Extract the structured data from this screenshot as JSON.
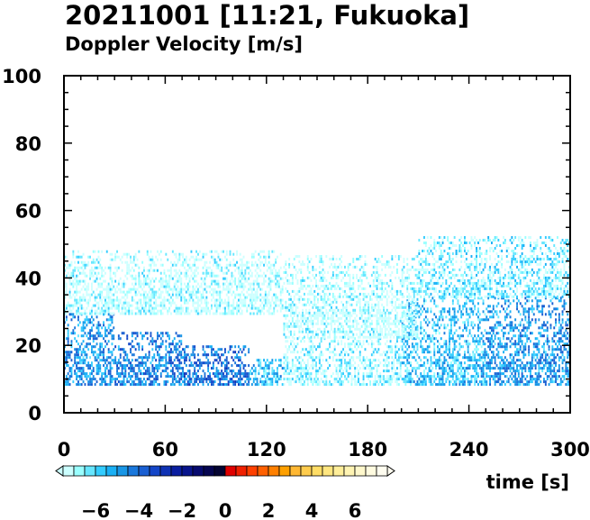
{
  "chart_data": {
    "type": "heatmap",
    "title": "20211001 [11:21, Fukuoka]",
    "subtitle": "Doppler Velocity [m/s]",
    "xlabel": "time [s]",
    "ylabel": "",
    "xlim": [
      0,
      300
    ],
    "ylim": [
      0,
      100
    ],
    "x_ticks": [
      0,
      60,
      120,
      180,
      240,
      300
    ],
    "y_ticks": [
      0,
      20,
      40,
      60,
      80,
      100
    ],
    "colorbar": {
      "range": [
        -7.5,
        7.5
      ],
      "tick_labels": [
        "−6",
        "−4",
        "−2",
        "0",
        "2",
        "4",
        "6"
      ],
      "tick_values": [
        -6,
        -4,
        -2,
        0,
        2,
        4,
        6
      ],
      "colors": [
        "#ccffff",
        "#99ffff",
        "#66e6ff",
        "#33ccff",
        "#1ab0f5",
        "#1996e6",
        "#1a78dc",
        "#1a5fd2",
        "#1446c8",
        "#0f32b4",
        "#0a1ea0",
        "#08148c",
        "#060a6e",
        "#050550",
        "#040432",
        "#e00000",
        "#f02000",
        "#ff4000",
        "#ff6000",
        "#ff8000",
        "#ffa000",
        "#ffb833",
        "#ffcc4d",
        "#ffdd66",
        "#ffe680",
        "#ffee99",
        "#fff4b3",
        "#fff8cc",
        "#fffbe0",
        "#fffdf0"
      ]
    },
    "regions": [
      {
        "t": [
          0,
          30
        ],
        "h": [
          8,
          29
        ],
        "v": -4.8
      },
      {
        "t": [
          30,
          70
        ],
        "h": [
          8,
          24
        ],
        "v": -4.4
      },
      {
        "t": [
          70,
          110
        ],
        "h": [
          8,
          20
        ],
        "v": -4.2
      },
      {
        "t": [
          110,
          130
        ],
        "h": [
          8,
          16
        ],
        "v": -5.6
      },
      {
        "t": [
          130,
          200
        ],
        "h": [
          8,
          22
        ],
        "v": -6.8
      },
      {
        "t": [
          200,
          250
        ],
        "h": [
          8,
          34
        ],
        "v": -5.6
      },
      {
        "t": [
          250,
          300
        ],
        "h": [
          8,
          34
        ],
        "v": -4.8
      },
      {
        "t": [
          0,
          130
        ],
        "h": [
          29,
          48
        ],
        "v": -7.2
      },
      {
        "t": [
          130,
          210
        ],
        "h": [
          22,
          46
        ],
        "v": -7.2
      },
      {
        "t": [
          210,
          300
        ],
        "h": [
          34,
          52
        ],
        "v": -6.6
      }
    ]
  }
}
